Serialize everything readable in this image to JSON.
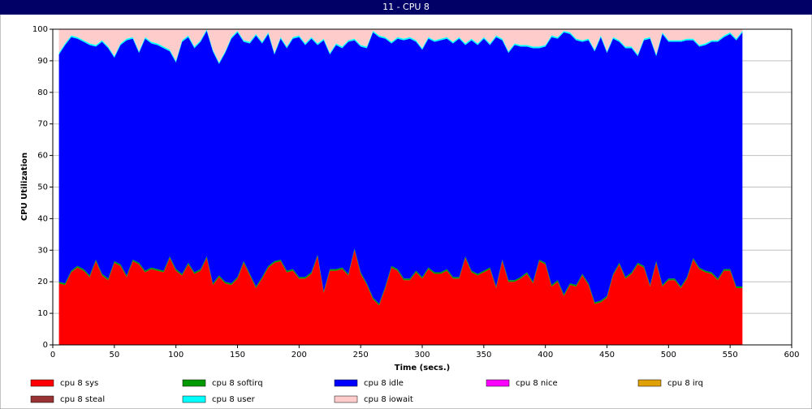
{
  "chart_data": {
    "type": "stacked_area",
    "title": "11 - CPU 8",
    "xlabel": "Time (secs.)",
    "ylabel": "CPU Utilization",
    "x": [
      5,
      10,
      15,
      20,
      25,
      30,
      35,
      40,
      45,
      50,
      55,
      60,
      65,
      70,
      75,
      80,
      85,
      90,
      95,
      100,
      105,
      110,
      115,
      120,
      125,
      130,
      135,
      140,
      145,
      150,
      155,
      160,
      165,
      170,
      175,
      180,
      185,
      190,
      195,
      200,
      205,
      210,
      215,
      220,
      225,
      230,
      235,
      240,
      245,
      250,
      255,
      260,
      265,
      270,
      275,
      280,
      285,
      290,
      295,
      300,
      305,
      310,
      315,
      320,
      325,
      330,
      335,
      340,
      345,
      350,
      355,
      360,
      365,
      370,
      375,
      380,
      385,
      390,
      395,
      400,
      405,
      410,
      415,
      420,
      425,
      430,
      435,
      440,
      445,
      450,
      455,
      460,
      465,
      470,
      475,
      480,
      485,
      490,
      495,
      500,
      505,
      510,
      515,
      520,
      525,
      530,
      535,
      540,
      545,
      550,
      555,
      560
    ],
    "series": [
      {
        "name": "cpu 8 sys",
        "color": "#ff0000",
        "values": [
          19.5,
          19,
          23,
          24.5,
          23.5,
          21.5,
          26.5,
          22,
          20.5,
          26,
          25,
          21.5,
          26.5,
          25.5,
          23,
          24,
          23.5,
          23,
          27.5,
          23.5,
          22,
          25.5,
          22.5,
          23.5,
          27.5,
          19,
          21.5,
          19.5,
          19,
          21,
          26,
          22,
          18,
          21,
          24.5,
          26,
          26.5,
          23,
          23.5,
          21,
          21,
          22.5,
          28,
          16.5,
          23.5,
          23.5,
          24,
          22,
          30,
          22.5,
          19,
          14.5,
          12.5,
          18,
          24.5,
          23.5,
          20.5,
          20.5,
          23,
          21,
          24,
          22.5,
          22.5,
          23.5,
          21,
          21,
          27.5,
          23,
          22,
          23,
          24,
          18,
          26.5,
          20,
          20,
          21,
          22.5,
          19.5,
          26.5,
          25.5,
          18.5,
          20,
          15.5,
          19,
          18.5,
          22,
          19,
          13,
          13.5,
          15,
          22,
          25.5,
          21,
          22.5,
          25.5,
          24.5,
          18.5,
          26,
          18.5,
          20.5,
          20.5,
          18,
          21,
          27,
          24,
          23,
          22.5,
          20.5,
          23.5,
          23.5,
          18,
          18
        ]
      },
      {
        "name": "cpu 8 softirq",
        "color": "#009900",
        "values": [
          0.5,
          0.5,
          0.5,
          0.5,
          0.5,
          0.5,
          0.5,
          0.5,
          0.5,
          0.5,
          0.5,
          0.5,
          0.5,
          0.5,
          0.5,
          0.5,
          0.5,
          0.5,
          0.5,
          0.5,
          0.5,
          0.5,
          0.5,
          0.5,
          0.5,
          0.5,
          0.5,
          0.5,
          0.5,
          0.5,
          0.5,
          0.5,
          0.5,
          0.5,
          0.5,
          0.5,
          0.5,
          0.5,
          0.5,
          0.5,
          0.5,
          0.5,
          0.5,
          0.5,
          0.5,
          0.5,
          0.5,
          0.5,
          0.5,
          0.5,
          0.5,
          0.5,
          0.5,
          0.5,
          0.5,
          0.5,
          0.5,
          0.5,
          0.5,
          0.5,
          0.5,
          0.5,
          0.5,
          0.5,
          0.5,
          0.5,
          0.5,
          0.5,
          0.5,
          0.5,
          0.5,
          0.5,
          0.5,
          0.5,
          0.5,
          0.5,
          0.5,
          0.5,
          0.5,
          0.5,
          0.5,
          0.5,
          0.5,
          0.5,
          0.5,
          0.5,
          0.5,
          0.5,
          0.5,
          0.5,
          0.5,
          0.5,
          0.5,
          0.5,
          0.5,
          0.5,
          0.5,
          0.5,
          0.5,
          0.5,
          0.5,
          0.5,
          0.5,
          0.5,
          0.5,
          0.5,
          0.5,
          0.5,
          0.5,
          0.5,
          0.5,
          0.5
        ]
      },
      {
        "name": "cpu 8 idle",
        "color": "#0000ff",
        "values": [
          72,
          75.5,
          74,
          72,
          72,
          73,
          67.5,
          73.5,
          73,
          64.5,
          69.5,
          74.5,
          70,
          66.5,
          73.5,
          71,
          71,
          70.5,
          65,
          65.5,
          73.5,
          71.5,
          71,
          72,
          71.5,
          73.5,
          67,
          72.5,
          77.5,
          77.5,
          69.5,
          73,
          79.5,
          74,
          73.5,
          65.5,
          70,
          70.5,
          73,
          76,
          73.5,
          74,
          66.5,
          79.5,
          68,
          71,
          69.5,
          73.5,
          66,
          71.5,
          74.5,
          84,
          84.5,
          78.5,
          70.5,
          73,
          75.5,
          76,
          72.5,
          72,
          72.5,
          73,
          73.5,
          73,
          74,
          75.5,
          67,
          73,
          72.5,
          73.5,
          70.5,
          79,
          69.5,
          72,
          74.5,
          73,
          71.5,
          74,
          67,
          68.5,
          78.5,
          76.5,
          83,
          79,
          77.5,
          73.5,
          77,
          79.5,
          83.5,
          77,
          74.5,
          70,
          72.5,
          71,
          65.5,
          71.5,
          78,
          65,
          79.5,
          75,
          75,
          77.5,
          75,
          69,
          70,
          71.5,
          73,
          75,
          73.5,
          74.5,
          78,
          80.5
        ]
      },
      {
        "name": "cpu 8 nice",
        "color": "#ff00ff",
        "values": [
          0,
          0,
          0,
          0,
          0,
          0,
          0,
          0,
          0,
          0,
          0,
          0,
          0,
          0,
          0,
          0,
          0,
          0,
          0,
          0,
          0,
          0,
          0,
          0,
          0,
          0,
          0,
          0,
          0,
          0,
          0,
          0,
          0,
          0,
          0,
          0,
          0,
          0,
          0,
          0,
          0,
          0,
          0,
          0,
          0,
          0,
          0,
          0,
          0,
          0,
          0,
          0,
          0,
          0,
          0,
          0,
          0,
          0,
          0,
          0,
          0,
          0,
          0,
          0,
          0,
          0,
          0,
          0,
          0,
          0,
          0,
          0,
          0,
          0,
          0,
          0,
          0,
          0,
          0,
          0,
          0,
          0,
          0,
          0,
          0,
          0,
          0,
          0,
          0,
          0,
          0,
          0,
          0,
          0,
          0,
          0,
          0,
          0,
          0,
          0,
          0,
          0,
          0,
          0,
          0,
          0,
          0,
          0,
          0,
          0,
          0,
          0
        ]
      },
      {
        "name": "cpu 8 irq",
        "color": "#e0a000",
        "values": [
          0,
          0,
          0,
          0,
          0,
          0,
          0,
          0,
          0,
          0,
          0,
          0,
          0,
          0,
          0,
          0,
          0,
          0,
          0,
          0,
          0,
          0,
          0,
          0,
          0,
          0,
          0,
          0,
          0,
          0,
          0,
          0,
          0,
          0,
          0,
          0,
          0,
          0,
          0,
          0,
          0,
          0,
          0,
          0,
          0,
          0,
          0,
          0,
          0,
          0,
          0,
          0,
          0,
          0,
          0,
          0,
          0,
          0,
          0,
          0,
          0,
          0,
          0,
          0,
          0,
          0,
          0,
          0,
          0,
          0,
          0,
          0,
          0,
          0,
          0,
          0,
          0,
          0,
          0,
          0,
          0,
          0,
          0,
          0,
          0,
          0,
          0,
          0,
          0,
          0,
          0,
          0,
          0,
          0,
          0,
          0,
          0,
          0,
          0,
          0,
          0,
          0,
          0,
          0,
          0,
          0,
          0,
          0,
          0,
          0,
          0,
          0
        ]
      },
      {
        "name": "cpu 8 steal",
        "color": "#993333",
        "values": [
          0,
          0,
          0,
          0,
          0,
          0,
          0,
          0,
          0,
          0,
          0,
          0,
          0,
          0,
          0,
          0,
          0,
          0,
          0,
          0,
          0,
          0,
          0,
          0,
          0,
          0,
          0,
          0,
          0,
          0,
          0,
          0,
          0,
          0,
          0,
          0,
          0,
          0,
          0,
          0,
          0,
          0,
          0,
          0,
          0,
          0,
          0,
          0,
          0,
          0,
          0,
          0,
          0,
          0,
          0,
          0,
          0,
          0,
          0,
          0,
          0,
          0,
          0,
          0,
          0,
          0,
          0,
          0,
          0,
          0,
          0,
          0,
          0,
          0,
          0,
          0,
          0,
          0,
          0,
          0,
          0,
          0,
          0,
          0,
          0,
          0,
          0,
          0,
          0,
          0,
          0,
          0,
          0,
          0,
          0,
          0,
          0,
          0,
          0,
          0,
          0,
          0,
          0,
          0,
          0,
          0,
          0,
          0,
          0,
          0,
          0,
          0
        ]
      },
      {
        "name": "cpu 8 user",
        "color": "#00ffff",
        "values": [
          0.5,
          0.5,
          0.5,
          0.5,
          0.5,
          0.5,
          0.5,
          0.5,
          0.5,
          0.5,
          0.5,
          0.5,
          0.5,
          0.5,
          0.5,
          0.5,
          0.5,
          0.5,
          0.5,
          0.5,
          0.5,
          0.5,
          0.5,
          0.5,
          0.5,
          0.5,
          0.5,
          0.5,
          0.5,
          0.5,
          0.5,
          0.5,
          0.5,
          0.5,
          0.5,
          0.5,
          0.5,
          0.5,
          0.5,
          0.5,
          0.5,
          0.5,
          0.5,
          0.5,
          0.5,
          0.5,
          0.5,
          0.5,
          0.5,
          0.5,
          0.5,
          0.5,
          0.5,
          0.5,
          0.5,
          0.5,
          0.5,
          0.5,
          0.5,
          0.5,
          0.5,
          0.5,
          0.5,
          0.5,
          0.5,
          0.5,
          0.5,
          0.5,
          0.5,
          0.5,
          0.5,
          0.5,
          0.5,
          0.5,
          0.5,
          0.5,
          0.5,
          0.5,
          0.5,
          0.5,
          0.5,
          0.5,
          0.5,
          0.5,
          0.5,
          0.5,
          0.5,
          0.5,
          0.5,
          0.5,
          0.5,
          0.5,
          0.5,
          0.5,
          0.5,
          0.5,
          0.5,
          0.5,
          0.5,
          0.5,
          0.5,
          0.5,
          0.5,
          0.5,
          0.5,
          0.5,
          0.5,
          0.5,
          0.5,
          0.5,
          0.5,
          0.5
        ]
      },
      {
        "name": "cpu 8 iowait",
        "color": "#ffcccc",
        "values": [
          7.5,
          4.5,
          2,
          2.5,
          3.5,
          4.5,
          5,
          3.5,
          5.5,
          8.5,
          4.5,
          3,
          2.5,
          7,
          2.5,
          4,
          4.5,
          5.5,
          6.5,
          10,
          3.5,
          2,
          5.5,
          3.5,
          0,
          6.5,
          10.5,
          7,
          2.5,
          0.5,
          3.5,
          4,
          1.5,
          4,
          1,
          7.5,
          2.5,
          5.5,
          2.5,
          2,
          4.5,
          2.5,
          4.5,
          3,
          7.5,
          4.5,
          5.5,
          3.5,
          3,
          5,
          5.5,
          0.5,
          2,
          2.5,
          4,
          2.5,
          3,
          2.5,
          3.5,
          6,
          2.5,
          3.5,
          3,
          2.5,
          4,
          2.5,
          4.5,
          3,
          4.5,
          2.5,
          4.5,
          2,
          3,
          7,
          4.5,
          5,
          5,
          5.5,
          5.5,
          5,
          2,
          2.5,
          0.5,
          1,
          3,
          3.5,
          3,
          6.5,
          2,
          7,
          2.5,
          3.5,
          5.5,
          5.5,
          8,
          3,
          2.5,
          8,
          1,
          3.5,
          3.5,
          3.5,
          3,
          3,
          5,
          4.5,
          3.5,
          3.5,
          2,
          1,
          3,
          0.5
        ]
      }
    ],
    "xlim": [
      0,
      600
    ],
    "xticks": [
      0,
      50,
      100,
      150,
      200,
      250,
      300,
      350,
      400,
      450,
      500,
      550,
      600
    ],
    "ylim": [
      0,
      100
    ],
    "yticks": [
      0,
      10,
      20,
      30,
      40,
      50,
      60,
      70,
      80,
      90,
      100
    ],
    "grid": true,
    "stacked": true,
    "legend": "bottom"
  }
}
